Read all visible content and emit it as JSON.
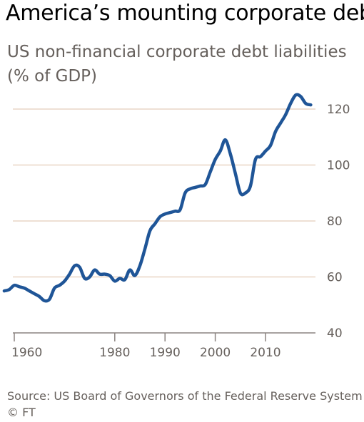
{
  "header": {
    "title": "America’s mounting corporate debt",
    "subtitle": "US non-financial corporate debt liabilities (% of GDP)"
  },
  "footer": {
    "source": "Source: US Board of Governors of the Federal Reserve System",
    "copyright": "© FT"
  },
  "colors": {
    "line": "#1f5597",
    "grid": "#e9d6c5",
    "axis": "#8a8380"
  },
  "chart_data": {
    "type": "line",
    "title": "America’s mounting corporate debt",
    "subtitle": "US non-financial corporate debt liabilities (% of GDP)",
    "xlabel": "",
    "ylabel": "",
    "xlim": [
      1958,
      2021
    ],
    "ylim": [
      40,
      130
    ],
    "grid": true,
    "legend": "none",
    "yticks": [
      40,
      60,
      80,
      100,
      120
    ],
    "xticks": [
      1960,
      1980,
      1990,
      2000,
      2010
    ],
    "series": [
      {
        "name": "",
        "x": [
          1958,
          1959,
          1960,
          1961,
          1962,
          1963,
          1964,
          1965,
          1966,
          1967,
          1968,
          1969,
          1970,
          1971,
          1972,
          1973,
          1974,
          1975,
          1976,
          1977,
          1978,
          1979,
          1980,
          1981,
          1982,
          1983,
          1984,
          1985,
          1986,
          1987,
          1988,
          1989,
          1990,
          1991,
          1992,
          1993,
          1994,
          1995,
          1996,
          1997,
          1998,
          1999,
          2000,
          2001,
          2002,
          2003,
          2004,
          2005,
          2006,
          2007,
          2008,
          2009,
          2010,
          2011,
          2012,
          2013,
          2014,
          2015,
          2016,
          2017,
          2018,
          2019
        ],
        "y": [
          55,
          55.5,
          57,
          56.5,
          56,
          55,
          54,
          53,
          51.5,
          52,
          56,
          57,
          58.5,
          61,
          64,
          63.5,
          59.5,
          60,
          62.5,
          61,
          61,
          60.5,
          58.5,
          59.5,
          59,
          62.5,
          60.5,
          64,
          70,
          76.5,
          79,
          81.5,
          82.5,
          83,
          83.5,
          84,
          90,
          91.5,
          92,
          92.5,
          93,
          97.5,
          102,
          105,
          109,
          104,
          97,
          90,
          90,
          92.5,
          102,
          103,
          105,
          107,
          112,
          115,
          118,
          122,
          125,
          124.5,
          122,
          121.5
        ]
      }
    ]
  }
}
